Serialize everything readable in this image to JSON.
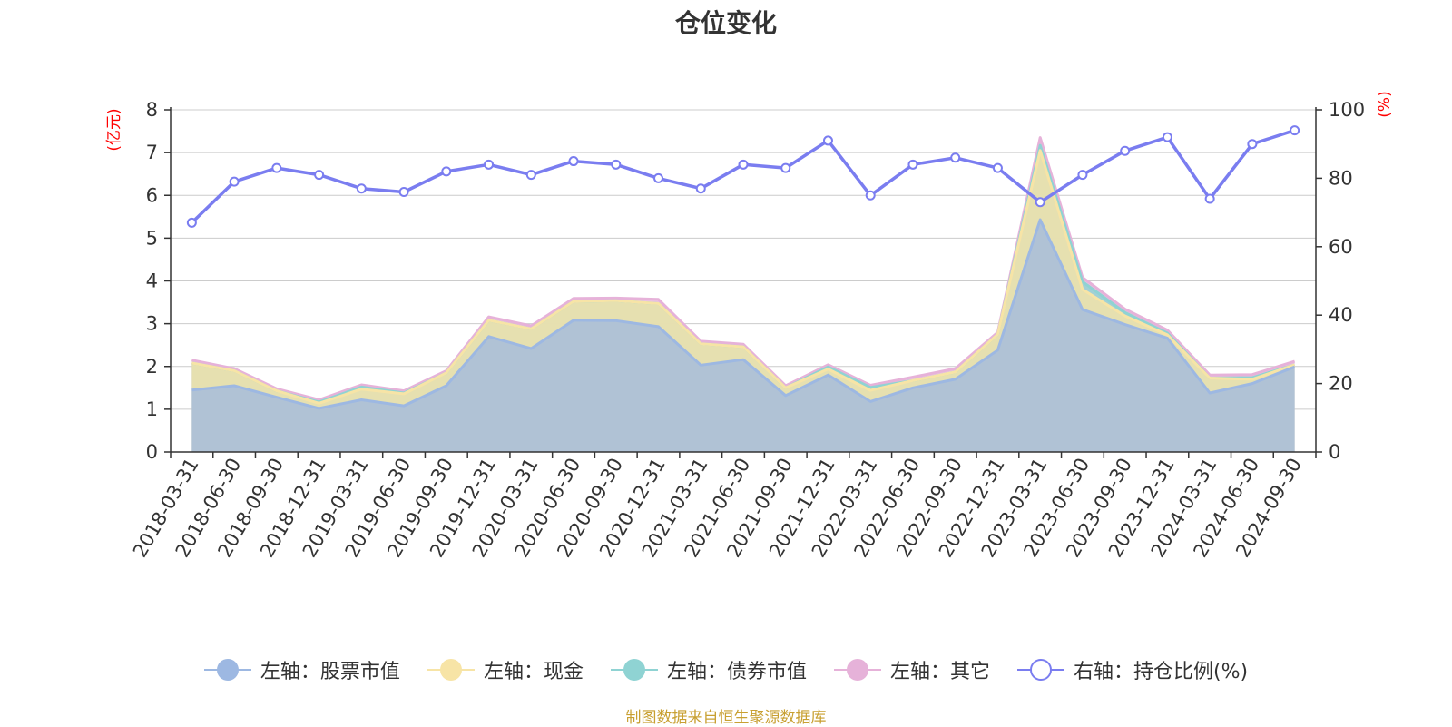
{
  "title": "仓位变化",
  "source_note": "制图数据来自恒生聚源数据库",
  "colors": {
    "stock": "#9db8e2",
    "cash": "#f7e4a6",
    "bond": "#8fd3d3",
    "other": "#e6b2d9",
    "ratio": "#7a7df0",
    "unit_red": "#ff0000",
    "grid": "#cccccc",
    "axis": "#333333"
  },
  "legend": [
    {
      "key": "stock",
      "label": "左轴：股票市值",
      "color": "#9db8e2",
      "hollow": false
    },
    {
      "key": "cash",
      "label": "左轴：现金",
      "color": "#f7e4a6",
      "hollow": false
    },
    {
      "key": "bond",
      "label": "左轴：债券市值",
      "color": "#8fd3d3",
      "hollow": false
    },
    {
      "key": "other",
      "label": "左轴：其它",
      "color": "#e6b2d9",
      "hollow": false
    },
    {
      "key": "ratio",
      "label": "右轴：持仓比例(%)",
      "color": "#7a7df0",
      "hollow": true
    }
  ],
  "chart_data": {
    "type": "area",
    "title": "仓位变化",
    "categories": [
      "2018-03-31",
      "2018-06-30",
      "2018-09-30",
      "2018-12-31",
      "2019-03-31",
      "2019-06-30",
      "2019-09-30",
      "2019-12-31",
      "2020-03-31",
      "2020-06-30",
      "2020-09-30",
      "2020-12-31",
      "2021-03-31",
      "2021-06-30",
      "2021-09-30",
      "2021-12-31",
      "2022-03-31",
      "2022-06-30",
      "2022-09-30",
      "2022-12-31",
      "2023-03-31",
      "2023-06-30",
      "2023-09-30",
      "2023-12-31",
      "2024-03-31",
      "2024-06-30",
      "2024-09-30"
    ],
    "left_axis": {
      "label": "(亿元)",
      "ylim": [
        0,
        8
      ],
      "ticks": [
        "0",
        "1",
        "2",
        "3",
        "4",
        "5",
        "6",
        "7",
        "8"
      ]
    },
    "right_axis": {
      "label": "(%)",
      "ylim": [
        0,
        100
      ],
      "ticks": [
        "0",
        "20",
        "40",
        "60",
        "80",
        "100"
      ]
    },
    "stacked": true,
    "series": [
      {
        "name": "左轴：股票市值",
        "key": "stock",
        "axis": "left",
        "values": [
          1.45,
          1.55,
          1.28,
          1.02,
          1.22,
          1.08,
          1.55,
          2.7,
          2.42,
          3.08,
          3.07,
          2.93,
          2.03,
          2.16,
          1.32,
          1.8,
          1.18,
          1.5,
          1.7,
          2.38,
          5.43,
          3.33,
          2.98,
          2.66,
          1.38,
          1.6,
          1.99
        ]
      },
      {
        "name": "左轴：现金",
        "key": "cash",
        "axis": "left",
        "values": [
          0.63,
          0.35,
          0.15,
          0.12,
          0.25,
          0.28,
          0.3,
          0.38,
          0.46,
          0.44,
          0.47,
          0.54,
          0.5,
          0.3,
          0.18,
          0.14,
          0.26,
          0.17,
          0.17,
          0.37,
          1.62,
          0.47,
          0.2,
          0.08,
          0.35,
          0.1,
          0.05
        ]
      },
      {
        "name": "左轴：债券市值",
        "key": "bond",
        "axis": "left",
        "values": [
          0,
          0,
          0,
          0.03,
          0.05,
          0.02,
          0,
          0,
          0,
          0,
          0,
          0,
          0,
          0,
          0,
          0.05,
          0.07,
          0,
          0,
          0,
          0.12,
          0.18,
          0.08,
          0.04,
          0,
          0.04,
          0
        ]
      },
      {
        "name": "左轴：其它",
        "key": "other",
        "axis": "left",
        "values": [
          0.07,
          0.05,
          0.05,
          0.05,
          0.05,
          0.05,
          0.05,
          0.08,
          0.07,
          0.07,
          0.06,
          0.1,
          0.06,
          0.06,
          0.05,
          0.05,
          0.05,
          0.08,
          0.08,
          0.05,
          0.18,
          0.1,
          0.08,
          0.07,
          0.07,
          0.07,
          0.08
        ]
      },
      {
        "name": "右轴：持仓比例(%)",
        "key": "ratio",
        "axis": "right",
        "type": "line",
        "values": [
          67,
          79,
          83,
          81,
          77,
          76,
          82,
          84,
          81,
          85,
          84,
          80,
          77,
          84,
          83,
          91,
          75,
          84,
          86,
          83,
          73,
          81,
          88,
          92,
          74,
          90,
          94
        ]
      }
    ]
  }
}
